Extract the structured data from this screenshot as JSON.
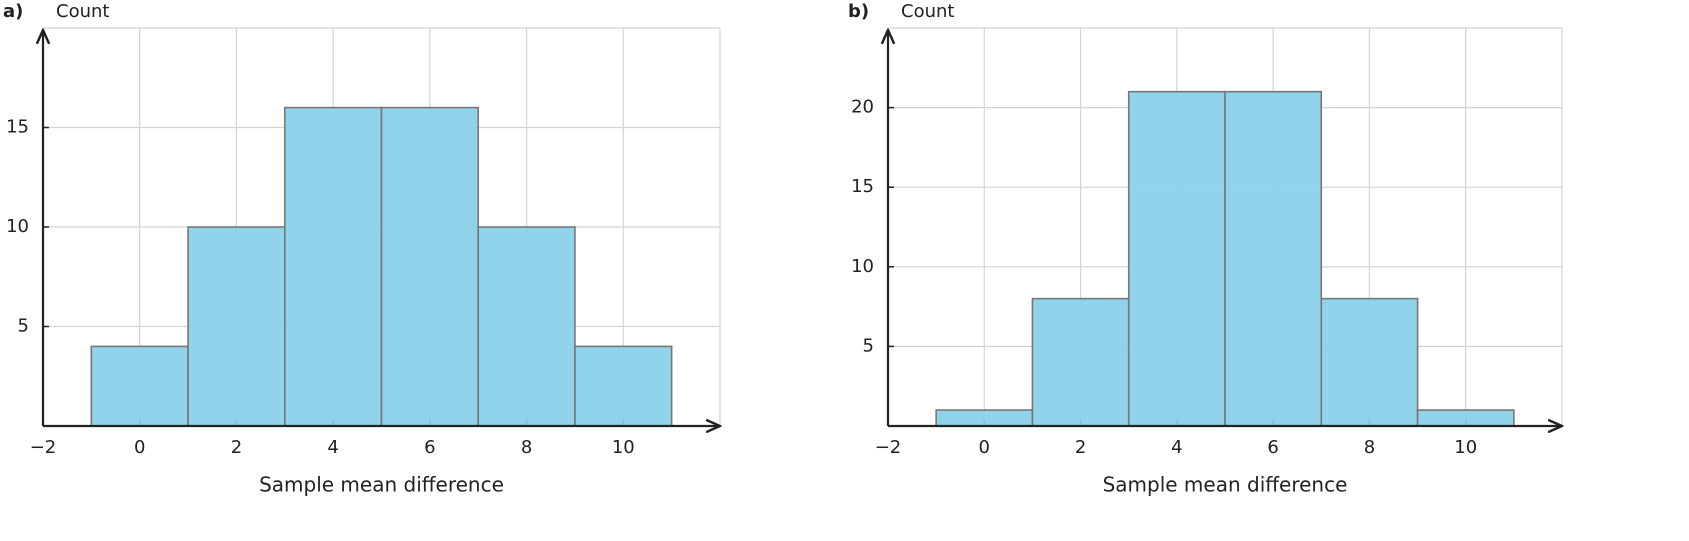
{
  "chart_data": [
    {
      "type": "histogram",
      "panel_label": "a)",
      "ylabel": "Count",
      "xlabel": "Sample mean difference",
      "bins": [
        -1,
        1,
        3,
        5,
        7,
        9,
        11
      ],
      "counts": [
        4,
        10,
        16,
        16,
        10,
        4
      ],
      "color": "#87cfe8",
      "xlim": [
        -2,
        12
      ],
      "ylim": [
        0,
        20
      ],
      "xticks": [
        {
          "value": -2,
          "label": "−2"
        },
        0,
        2,
        4,
        6,
        8,
        10
      ],
      "yticks": [
        5,
        10,
        15
      ],
      "grid": true
    },
    {
      "type": "histogram",
      "panel_label": "b)",
      "ylabel": "Count",
      "xlabel": "Sample mean difference",
      "bins": [
        -1,
        1,
        3,
        5,
        7,
        9,
        11
      ],
      "counts": [
        1,
        8,
        21,
        21,
        8,
        1
      ],
      "color": "#87cfe8",
      "xlim": [
        -2,
        12
      ],
      "ylim": [
        0,
        25
      ],
      "xticks": [
        {
          "value": -2,
          "label": "−2"
        },
        0,
        2,
        4,
        6,
        8,
        10
      ],
      "yticks": [
        5,
        10,
        15,
        20
      ],
      "grid": true
    }
  ]
}
